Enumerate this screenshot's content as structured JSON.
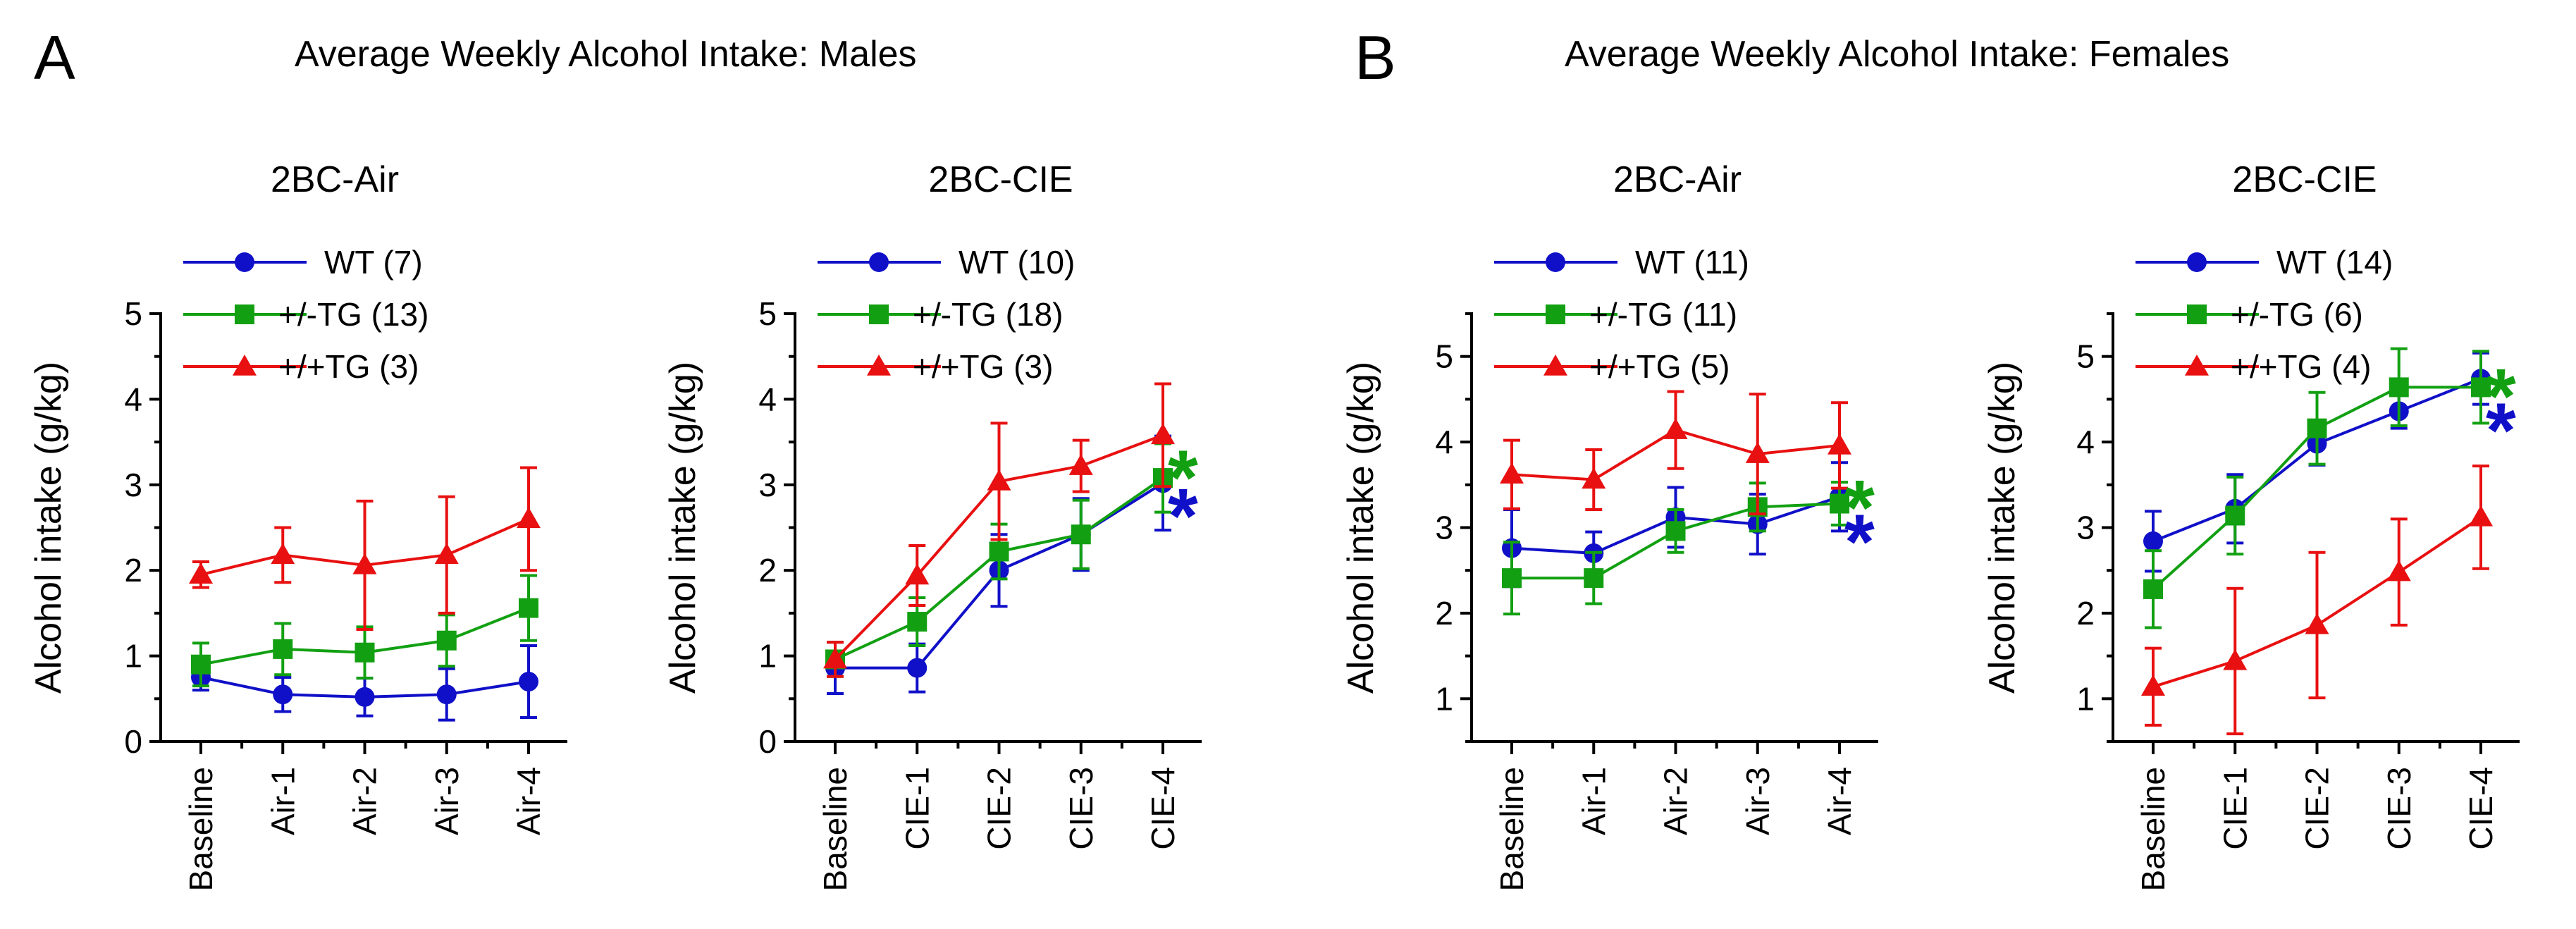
{
  "panel_A": {
    "letter": "A",
    "title": "Average Weekly Alcohol Intake: Males"
  },
  "panel_B": {
    "letter": "B",
    "title": "Average Weekly Alcohol Intake: Females"
  },
  "colors": {
    "wt": "#1010c8",
    "het": "#12a012",
    "hom": "#e81010"
  },
  "chart_data": [
    {
      "type": "line",
      "panel": "A",
      "title": "2BC-Air",
      "ylabel": "Alcohol intake (g/kg)",
      "ylim": [
        0,
        5
      ],
      "yticks": [
        0,
        1,
        2,
        3,
        4,
        5
      ],
      "categories": [
        "Baseline",
        "Air-1",
        "Air-2",
        "Air-3",
        "Air-4"
      ],
      "series": [
        {
          "name": "WT (7)",
          "key": "wt",
          "marker": "circle",
          "values": [
            0.75,
            0.55,
            0.52,
            0.55,
            0.7
          ],
          "errors": [
            0.15,
            0.2,
            0.22,
            0.3,
            0.42
          ]
        },
        {
          "name": "+/-TG (13)",
          "key": "het",
          "marker": "square",
          "values": [
            0.9,
            1.08,
            1.04,
            1.18,
            1.56
          ],
          "errors": [
            0.25,
            0.3,
            0.3,
            0.3,
            0.38
          ]
        },
        {
          "name": "+/+TG (3)",
          "key": "hom",
          "marker": "triangle",
          "values": [
            1.95,
            2.18,
            2.06,
            2.18,
            2.6
          ],
          "errors": [
            0.15,
            0.32,
            0.75,
            0.68,
            0.6
          ]
        }
      ],
      "significance": []
    },
    {
      "type": "line",
      "panel": "A",
      "title": "2BC-CIE",
      "ylabel": "Alcohol intake (g/kg)",
      "ylim": [
        0,
        5
      ],
      "yticks": [
        0,
        1,
        2,
        3,
        4,
        5
      ],
      "categories": [
        "Baseline",
        "CIE-1",
        "CIE-2",
        "CIE-3",
        "CIE-4"
      ],
      "series": [
        {
          "name": "WT (10)",
          "key": "wt",
          "marker": "circle",
          "values": [
            0.86,
            0.86,
            2.0,
            2.42,
            3.02
          ],
          "errors": [
            0.3,
            0.28,
            0.42,
            0.42,
            0.55
          ]
        },
        {
          "name": "+/-TG (18)",
          "key": "het",
          "marker": "square",
          "values": [
            0.96,
            1.4,
            2.22,
            2.42,
            3.08
          ],
          "errors": [
            0.2,
            0.28,
            0.32,
            0.4,
            0.4
          ]
        },
        {
          "name": "+/+TG (3)",
          "key": "hom",
          "marker": "triangle",
          "values": [
            0.96,
            1.94,
            3.04,
            3.22,
            3.58
          ],
          "errors": [
            0.2,
            0.35,
            0.68,
            0.3,
            0.6
          ]
        }
      ],
      "significance": [
        {
          "key": "het",
          "text": "*",
          "y": 3.25
        },
        {
          "key": "wt",
          "text": "*",
          "y": 2.8
        }
      ]
    },
    {
      "type": "line",
      "panel": "B",
      "title": "2BC-Air",
      "ylabel": "Alcohol intake (g/kg)",
      "ylim": [
        0.5,
        5.5
      ],
      "yticks": [
        1,
        2,
        3,
        4,
        5
      ],
      "categories": [
        "Baseline",
        "Air-1",
        "Air-2",
        "Air-3",
        "Air-4"
      ],
      "series": [
        {
          "name": "WT (11)",
          "key": "wt",
          "marker": "circle",
          "values": [
            2.76,
            2.7,
            3.12,
            3.04,
            3.36
          ],
          "errors": [
            0.45,
            0.25,
            0.35,
            0.35,
            0.4
          ]
        },
        {
          "name": "+/-TG (11)",
          "key": "het",
          "marker": "square",
          "values": [
            2.41,
            2.41,
            2.96,
            3.24,
            3.28
          ],
          "errors": [
            0.42,
            0.3,
            0.25,
            0.28,
            0.25
          ]
        },
        {
          "name": "+/+TG (5)",
          "key": "hom",
          "marker": "triangle",
          "values": [
            3.62,
            3.56,
            4.14,
            3.86,
            3.96
          ],
          "errors": [
            0.4,
            0.35,
            0.45,
            0.7,
            0.5
          ]
        }
      ],
      "significance": [
        {
          "key": "het",
          "text": "*",
          "y": 3.4
        },
        {
          "key": "wt",
          "text": "*",
          "y": 3.0
        }
      ]
    },
    {
      "type": "line",
      "panel": "B",
      "title": "2BC-CIE",
      "ylabel": "Alcohol intake (g/kg)",
      "ylim": [
        0.5,
        5.5
      ],
      "yticks": [
        1,
        2,
        3,
        4,
        5
      ],
      "categories": [
        "Baseline",
        "CIE-1",
        "CIE-2",
        "CIE-3",
        "CIE-4"
      ],
      "series": [
        {
          "name": "WT (14)",
          "key": "wt",
          "marker": "circle",
          "values": [
            2.84,
            3.22,
            3.98,
            4.36,
            4.74
          ],
          "errors": [
            0.35,
            0.4,
            0.25,
            0.2,
            0.3
          ]
        },
        {
          "name": "+/-TG (6)",
          "key": "het",
          "marker": "square",
          "values": [
            2.28,
            3.14,
            4.16,
            4.64,
            4.64
          ],
          "errors": [
            0.45,
            0.45,
            0.42,
            0.45,
            0.42
          ]
        },
        {
          "name": "+/+TG (4)",
          "key": "hom",
          "marker": "triangle",
          "values": [
            1.14,
            1.44,
            1.86,
            2.48,
            3.12
          ],
          "errors": [
            0.45,
            0.85,
            0.85,
            0.62,
            0.6
          ]
        }
      ],
      "significance": [
        {
          "key": "het",
          "text": "*",
          "y": 4.7
        },
        {
          "key": "wt",
          "text": "*",
          "y": 4.3
        }
      ]
    }
  ]
}
